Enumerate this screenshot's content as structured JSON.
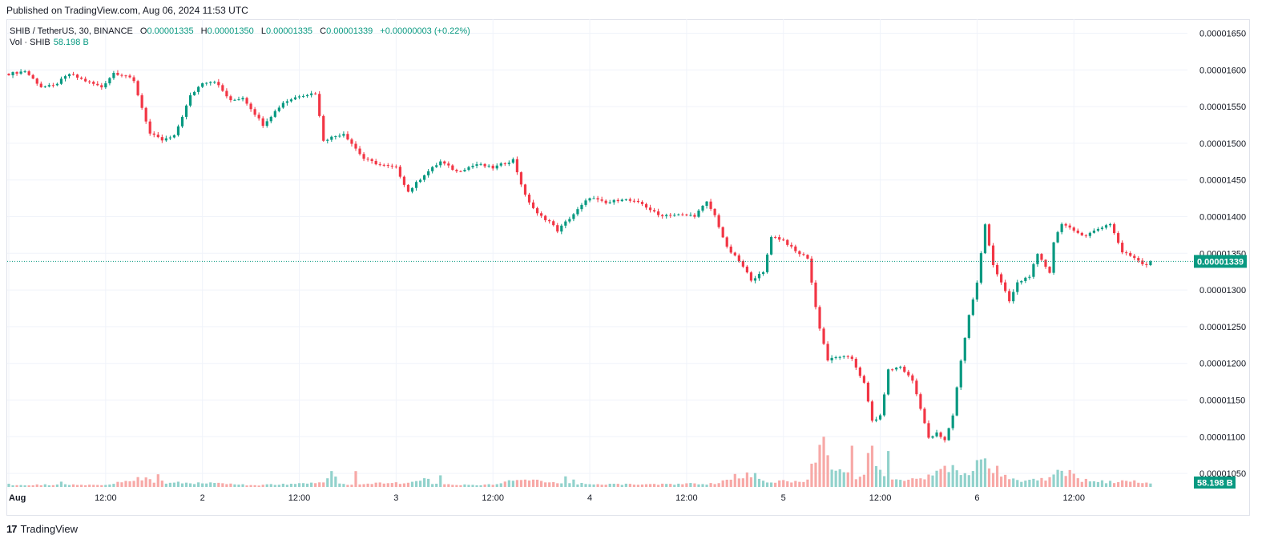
{
  "header": {
    "published": "Published on TradingView.com, Aug 06, 2024 11:53 UTC"
  },
  "legend": {
    "symbol": "SHIB / TetherUS, 30, BINANCE",
    "open_label": "O",
    "open": "0.00001335",
    "high_label": "H",
    "high": "0.00001350",
    "low_label": "L",
    "low": "0.00001335",
    "close_label": "C",
    "close": "0.00001339",
    "change": "+0.00000003 (+0.22%)",
    "vol_label": "Vol · SHIB",
    "vol_value": "58.198 B"
  },
  "footer": {
    "brand": "TradingView",
    "logo_glyph": "17"
  },
  "colors": {
    "up": "#089981",
    "down": "#f23645",
    "up_vol": "#92d2cc",
    "down_vol": "#f7a9a7",
    "grid": "#f0f3fa",
    "last_price_line": "#089981"
  },
  "chart_data": {
    "type": "candlestick",
    "symbol": "SHIB / TetherUS",
    "interval": "30",
    "exchange": "BINANCE",
    "y_ticks": [
      "0.00001650",
      "0.00001600",
      "0.00001550",
      "0.00001500",
      "0.00001450",
      "0.00001400",
      "0.00001350",
      "0.00001300",
      "0.00001250",
      "0.00001200",
      "0.00001150",
      "0.00001100",
      "0.00001050"
    ],
    "ylim": [
      1.02e-05,
      1.67e-05
    ],
    "x_tick_labels": [
      "Aug",
      "12:00",
      "2",
      "12:00",
      "3",
      "12:00",
      "4",
      "12:00",
      "5",
      "12:00",
      "6",
      "12:00"
    ],
    "x_tick_bar_index": [
      0,
      24,
      48,
      72,
      96,
      120,
      144,
      168,
      192,
      216,
      240,
      264
    ],
    "last_price": "0.00001339",
    "last_volume": "58.198 B",
    "close_anchors": [
      [
        0,
        1.5945e-05
      ],
      [
        4,
        1.5985e-05
      ],
      [
        8,
        1.577e-05
      ],
      [
        11,
        1.578e-05
      ],
      [
        15,
        1.5945e-05
      ],
      [
        19,
        1.585e-05
      ],
      [
        23,
        1.5765e-05
      ],
      [
        26,
        1.596e-05
      ],
      [
        29,
        1.5925e-05
      ],
      [
        31,
        1.584e-05
      ],
      [
        35,
        1.513e-05
      ],
      [
        38,
        1.504e-05
      ],
      [
        41,
        1.5095e-05
      ],
      [
        45,
        1.5645e-05
      ],
      [
        48,
        1.583e-05
      ],
      [
        51,
        1.585e-05
      ],
      [
        55,
        1.5575e-05
      ],
      [
        58,
        1.5625e-05
      ],
      [
        63,
        1.5255e-05
      ],
      [
        68,
        1.5555e-05
      ],
      [
        72,
        1.565e-05
      ],
      [
        76,
        1.5685e-05
      ],
      [
        78,
        1.5045e-05
      ],
      [
        83,
        1.5135e-05
      ],
      [
        88,
        1.479e-05
      ],
      [
        92,
        1.4705e-05
      ],
      [
        96,
        1.4665e-05
      ],
      [
        99,
        1.434e-05
      ],
      [
        103,
        1.4575e-05
      ],
      [
        107,
        1.475e-05
      ],
      [
        111,
        1.4615e-05
      ],
      [
        116,
        1.4715e-05
      ],
      [
        120,
        1.4665e-05
      ],
      [
        125,
        1.4775e-05
      ],
      [
        128,
        1.4285e-05
      ],
      [
        131,
        1.4035e-05
      ],
      [
        134,
        1.3935e-05
      ],
      [
        136,
        1.381e-05
      ],
      [
        140,
        1.4035e-05
      ],
      [
        144,
        1.4265e-05
      ],
      [
        148,
        1.418e-05
      ],
      [
        152,
        1.4245e-05
      ],
      [
        157,
        1.417e-05
      ],
      [
        161,
        1.402e-05
      ],
      [
        165,
        1.4025e-05
      ],
      [
        170,
        1.4015e-05
      ],
      [
        173,
        1.4195e-05
      ],
      [
        175,
        1.4015e-05
      ],
      [
        178,
        1.3575e-05
      ],
      [
        181,
        1.3395e-05
      ],
      [
        184,
        1.3145e-05
      ],
      [
        187,
        1.3235e-05
      ],
      [
        189,
        1.3735e-05
      ],
      [
        192,
        1.368e-05
      ],
      [
        195,
        1.3525e-05
      ],
      [
        198,
        1.344e-05
      ],
      [
        200,
        1.2765e-05
      ],
      [
        201,
        1.2485e-05
      ],
      [
        203,
        1.2045e-05
      ],
      [
        206,
        1.2095e-05
      ],
      [
        209,
        1.2065e-05
      ],
      [
        212,
        1.1725e-05
      ],
      [
        214,
        1.1215e-05
      ],
      [
        216,
        1.1275e-05
      ],
      [
        218,
        1.1905e-05
      ],
      [
        221,
        1.1955e-05
      ],
      [
        224,
        1.1765e-05
      ],
      [
        226,
        1.1395e-05
      ],
      [
        228,
        1.0975e-05
      ],
      [
        230,
        1.1045e-05
      ],
      [
        232,
        1.0945e-05
      ],
      [
        234,
        1.1295e-05
      ],
      [
        236,
        1.2045e-05
      ],
      [
        238,
        1.2655e-05
      ],
      [
        240,
        1.3095e-05
      ],
      [
        242,
        1.3895e-05
      ],
      [
        244,
        1.3345e-05
      ],
      [
        246,
        1.3095e-05
      ],
      [
        248,
        1.2845e-05
      ],
      [
        250,
        1.3095e-05
      ],
      [
        253,
        1.3195e-05
      ],
      [
        255,
        1.3475e-05
      ],
      [
        258,
        1.3245e-05
      ],
      [
        259,
        1.3655e-05
      ],
      [
        261,
        1.3915e-05
      ],
      [
        264,
        1.3795e-05
      ],
      [
        267,
        1.3745e-05
      ],
      [
        270,
        1.3835e-05
      ],
      [
        273,
        1.3905e-05
      ],
      [
        276,
        1.3515e-05
      ],
      [
        279,
        1.3445e-05
      ],
      [
        281,
        1.3365e-05
      ],
      [
        282,
        1.3345e-05
      ],
      [
        283,
        1.3391e-05
      ]
    ],
    "volume_anchors": [
      [
        0,
        4
      ],
      [
        25,
        4
      ],
      [
        30,
        14
      ],
      [
        34,
        18
      ],
      [
        36,
        8
      ],
      [
        40,
        8
      ],
      [
        56,
        6
      ],
      [
        60,
        3
      ],
      [
        78,
        8
      ],
      [
        80,
        30
      ],
      [
        82,
        5
      ],
      [
        100,
        8
      ],
      [
        103,
        20
      ],
      [
        105,
        5
      ],
      [
        120,
        4
      ],
      [
        125,
        12
      ],
      [
        128,
        15
      ],
      [
        133,
        8
      ],
      [
        150,
        5
      ],
      [
        175,
        6
      ],
      [
        178,
        18
      ],
      [
        181,
        22
      ],
      [
        184,
        26
      ],
      [
        187,
        12
      ],
      [
        195,
        10
      ],
      [
        198,
        14
      ],
      [
        200,
        55
      ],
      [
        202,
        75
      ],
      [
        204,
        40
      ],
      [
        206,
        30
      ],
      [
        208,
        22
      ],
      [
        210,
        14
      ],
      [
        212,
        28
      ],
      [
        214,
        75
      ],
      [
        216,
        25
      ],
      [
        218,
        18
      ],
      [
        220,
        15
      ],
      [
        222,
        12
      ],
      [
        224,
        15
      ],
      [
        226,
        14
      ],
      [
        228,
        22
      ],
      [
        230,
        25
      ],
      [
        232,
        35
      ],
      [
        234,
        40
      ],
      [
        236,
        28
      ],
      [
        238,
        22
      ],
      [
        240,
        40
      ],
      [
        242,
        48
      ],
      [
        244,
        25
      ],
      [
        246,
        20
      ],
      [
        250,
        14
      ],
      [
        254,
        12
      ],
      [
        258,
        18
      ],
      [
        260,
        25
      ],
      [
        262,
        22
      ],
      [
        265,
        14
      ],
      [
        270,
        10
      ],
      [
        275,
        10
      ],
      [
        277,
        12
      ],
      [
        279,
        10
      ],
      [
        282,
        7
      ],
      [
        283,
        7
      ]
    ],
    "volume_spikes": [
      [
        0,
        6
      ],
      [
        13,
        10
      ],
      [
        34,
        18
      ],
      [
        37,
        24
      ],
      [
        38,
        12
      ],
      [
        86,
        30
      ],
      [
        107,
        22
      ],
      [
        138,
        20
      ],
      [
        140,
        14
      ],
      [
        202,
        95
      ],
      [
        203,
        60
      ],
      [
        209,
        78
      ],
      [
        214,
        78
      ],
      [
        218,
        68
      ],
      [
        232,
        40
      ],
      [
        241,
        52
      ],
      [
        245,
        40
      ],
      [
        263,
        32
      ],
      [
        264,
        25
      ]
    ]
  }
}
